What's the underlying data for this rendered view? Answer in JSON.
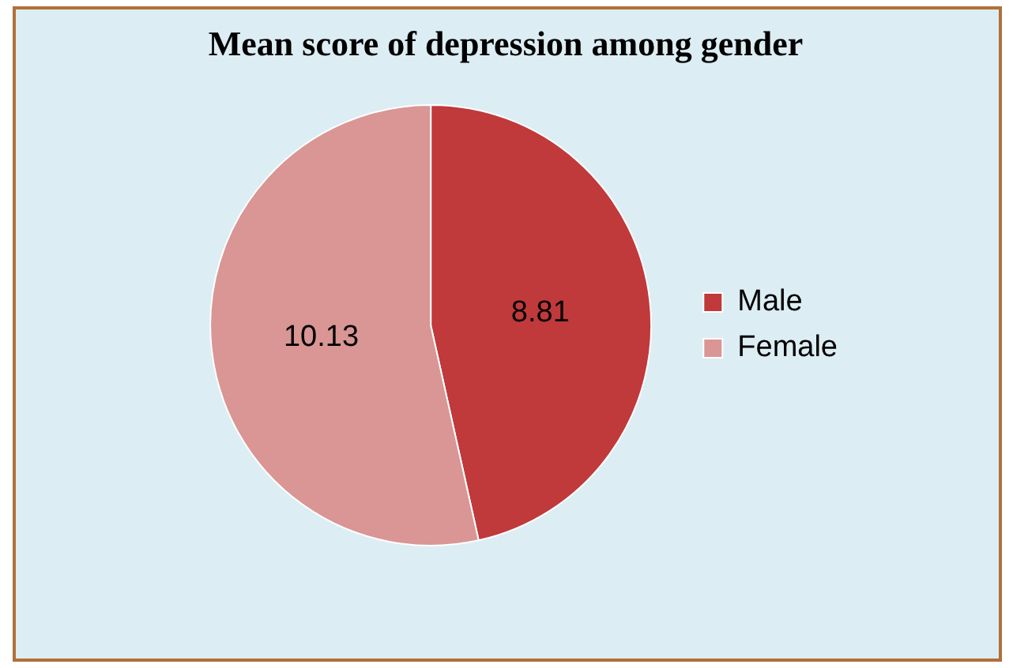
{
  "chart_data": {
    "type": "pie",
    "title": "Mean score of depression among gender",
    "categories": [
      "Male",
      "Female"
    ],
    "values": [
      8.81,
      10.13
    ],
    "colors": [
      "#c0393b",
      "#d99694"
    ],
    "data_labels": true,
    "legend": "right"
  }
}
